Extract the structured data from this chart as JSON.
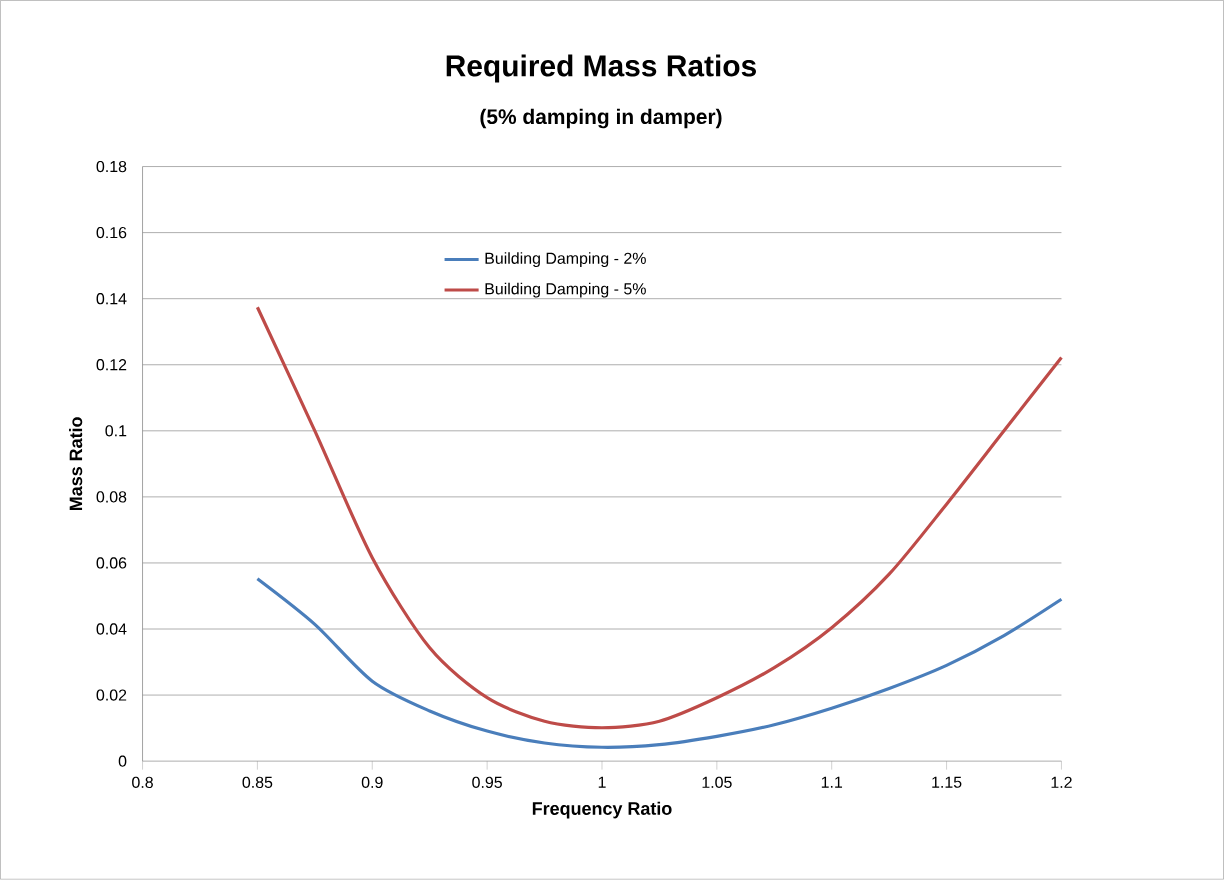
{
  "chart_data": {
    "type": "line",
    "title": "Required Mass Ratios",
    "subtitle": "(5% damping in damper)",
    "xlabel": "Frequency Ratio",
    "ylabel": "Mass Ratio",
    "x": [
      0.85,
      0.875,
      0.9,
      0.925,
      0.95,
      0.975,
      1.0,
      1.025,
      1.05,
      1.075,
      1.1,
      1.125,
      1.15,
      1.175,
      1.2
    ],
    "series": [
      {
        "name": "Building Damping - 2%",
        "color": "#4a7ebb",
        "values": [
          0.0552,
          0.0414,
          0.0242,
          0.0152,
          0.0091,
          0.0055,
          0.0042,
          0.005,
          0.0075,
          0.011,
          0.016,
          0.022,
          0.029,
          0.038,
          0.049
        ]
      },
      {
        "name": "Building Damping - 5%",
        "color": "#be4b48",
        "values": [
          0.1374,
          0.1,
          0.0616,
          0.0343,
          0.0192,
          0.0121,
          0.0101,
          0.0121,
          0.0192,
          0.0283,
          0.0404,
          0.0566,
          0.0778,
          0.1,
          0.1222
        ]
      }
    ],
    "xlim": [
      0.8,
      1.2
    ],
    "ylim": [
      0,
      0.18
    ],
    "xticks": [
      0.8,
      0.85,
      0.9,
      0.95,
      1,
      1.05,
      1.1,
      1.15,
      1.2
    ],
    "yticks": [
      0,
      0.02,
      0.04,
      0.06,
      0.08,
      0.1,
      0.12,
      0.14,
      0.16,
      0.18
    ],
    "grid": "y",
    "legend": "top",
    "marker": "none",
    "line_style": "solid"
  }
}
